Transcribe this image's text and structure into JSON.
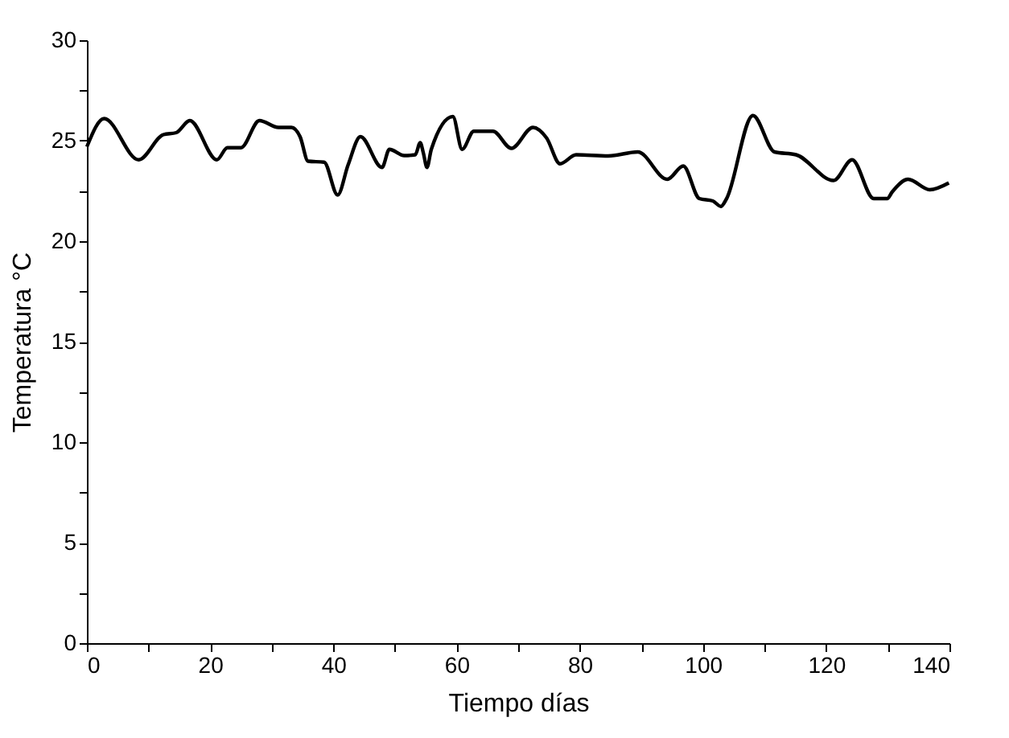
{
  "chart_data": {
    "type": "line",
    "xlabel": "Tiempo días",
    "ylabel": "Temperatura °C",
    "x": [
      0,
      2.8,
      8.4,
      12.4,
      14.5,
      16.7,
      21.1,
      22.8,
      25,
      28,
      31.1,
      33.2,
      34.6,
      35.9,
      38.5,
      40.7,
      42.4,
      44.4,
      47.9,
      49.1,
      51.5,
      53.3,
      54.1,
      54.6,
      55.2,
      55.9,
      59.4,
      60.9,
      62.8,
      65.9,
      68.9,
      72.4,
      74.6,
      76.8,
      79.4,
      84.6,
      89.4,
      94.2,
      96.8,
      99.4,
      101.6,
      102.9,
      103.8,
      108.1,
      111.6,
      115.1,
      121.2,
      124.2,
      127.7,
      129.9,
      130.7,
      133.3,
      136.8,
      139.9
    ],
    "series": [
      {
        "color": "#000000",
        "values": [
          24.7,
          26.1,
          24.05,
          25.3,
          25.4,
          26.0,
          24.05,
          24.65,
          24.65,
          26.0,
          25.66,
          25.66,
          25.2,
          23.98,
          23.93,
          22.3,
          23.8,
          25.2,
          23.67,
          24.57,
          24.26,
          24.3,
          24.9,
          24.4,
          23.67,
          24.57,
          26.2,
          24.57,
          25.47,
          25.47,
          24.62,
          25.66,
          25.14,
          23.85,
          24.3,
          24.24,
          24.44,
          23.08,
          23.74,
          22.12,
          22.0,
          21.73,
          22.1,
          26.25,
          24.44,
          24.3,
          23.02,
          24.05,
          22.12,
          22.12,
          22.45,
          23.08,
          22.56,
          22.9
        ]
      }
    ],
    "xlim": [
      0,
      140
    ],
    "ylim": [
      0,
      30
    ],
    "xticks": [
      0,
      {
        "value": 10,
        "label": null
      },
      20,
      {
        "value": 30,
        "label": null
      },
      40,
      {
        "value": 50,
        "label": null
      },
      60,
      {
        "value": 70,
        "label": null
      },
      80,
      {
        "value": 90,
        "label": null
      },
      100,
      {
        "value": 110,
        "label": null
      },
      120,
      {
        "value": 130,
        "label": null
      },
      140
    ],
    "yticks": [
      0,
      {
        "value": 2.5,
        "label": null
      },
      5,
      {
        "value": 7.5,
        "label": null
      },
      10,
      {
        "value": 12.5,
        "label": null
      },
      15,
      {
        "value": 17.5,
        "label": null
      },
      20,
      {
        "value": 22.5,
        "label": null
      },
      25,
      {
        "value": 27.5,
        "label": null
      },
      30
    ],
    "grid": false,
    "marker": "none",
    "line_style": "solid",
    "legend": false
  }
}
